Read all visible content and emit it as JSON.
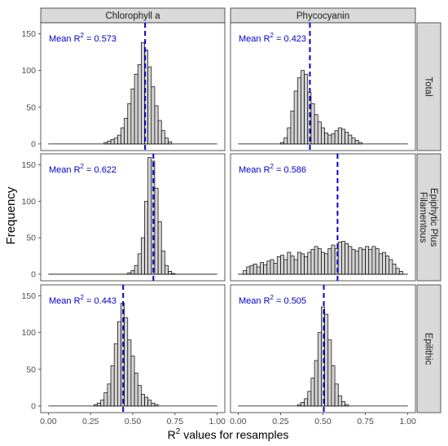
{
  "chart_data": {
    "type": "bar",
    "chart_kind": "faceted histogram",
    "xlabel": "R2 values for resamples",
    "xlabel_main": "R",
    "xlabel_sup": "2",
    "xlabel_rest": " values for resamples",
    "ylabel": "Frequency",
    "xlim": [
      0,
      1
    ],
    "x_ticks": [
      0.0,
      0.25,
      0.5,
      0.75,
      1.0
    ],
    "x_tick_labels": [
      "0.00",
      "0.25",
      "0.50",
      "0.75",
      "1.00"
    ],
    "ylim": [
      0,
      165
    ],
    "y_ticks": [
      0,
      50,
      100,
      150
    ],
    "y_tick_labels": [
      "0",
      "50",
      "100",
      "150"
    ],
    "columns": [
      "Chlorophyll a",
      "Phycocyanin"
    ],
    "rows": [
      "Total",
      "Epiphytic Plus Filamentous",
      "Epilithic"
    ],
    "row_label_lines": [
      [
        "Total"
      ],
      [
        "Epiphytic Plus",
        "Filamentous"
      ],
      [
        "Epilithic"
      ]
    ],
    "annotation_prefix": "Mean R",
    "annotation_sup": "2",
    "annotation_eq": " = ",
    "grid": false,
    "bar_fill": "#d3d3d3",
    "bar_stroke": "#000000",
    "mean_line_color": "#0000cc",
    "strip_fill": "#d9d9d9",
    "bin_width": 0.02,
    "panels": [
      {
        "row": "Total",
        "column": "Chlorophyll a",
        "mean_label": "0.573",
        "mean_line": 0.573,
        "bins": [
          {
            "x": 0.34,
            "y": 2
          },
          {
            "x": 0.36,
            "y": 4
          },
          {
            "x": 0.38,
            "y": 6
          },
          {
            "x": 0.4,
            "y": 8
          },
          {
            "x": 0.42,
            "y": 12
          },
          {
            "x": 0.44,
            "y": 22
          },
          {
            "x": 0.46,
            "y": 35
          },
          {
            "x": 0.48,
            "y": 55
          },
          {
            "x": 0.5,
            "y": 75
          },
          {
            "x": 0.52,
            "y": 95
          },
          {
            "x": 0.54,
            "y": 108
          },
          {
            "x": 0.56,
            "y": 138
          },
          {
            "x": 0.58,
            "y": 128
          },
          {
            "x": 0.6,
            "y": 105
          },
          {
            "x": 0.62,
            "y": 78
          },
          {
            "x": 0.64,
            "y": 52
          },
          {
            "x": 0.66,
            "y": 32
          },
          {
            "x": 0.68,
            "y": 18
          },
          {
            "x": 0.7,
            "y": 8
          },
          {
            "x": 0.72,
            "y": 3
          }
        ]
      },
      {
        "row": "Total",
        "column": "Phycocyanin",
        "mean_label": "0.423",
        "mean_line": 0.423,
        "bins": [
          {
            "x": 0.26,
            "y": 2
          },
          {
            "x": 0.28,
            "y": 8
          },
          {
            "x": 0.3,
            "y": 22
          },
          {
            "x": 0.32,
            "y": 45
          },
          {
            "x": 0.34,
            "y": 72
          },
          {
            "x": 0.36,
            "y": 90
          },
          {
            "x": 0.38,
            "y": 100
          },
          {
            "x": 0.4,
            "y": 95
          },
          {
            "x": 0.42,
            "y": 70
          },
          {
            "x": 0.44,
            "y": 55
          },
          {
            "x": 0.46,
            "y": 40
          },
          {
            "x": 0.48,
            "y": 30
          },
          {
            "x": 0.5,
            "y": 22
          },
          {
            "x": 0.52,
            "y": 15
          },
          {
            "x": 0.54,
            "y": 12
          },
          {
            "x": 0.56,
            "y": 14
          },
          {
            "x": 0.58,
            "y": 18
          },
          {
            "x": 0.6,
            "y": 22
          },
          {
            "x": 0.62,
            "y": 20
          },
          {
            "x": 0.64,
            "y": 16
          },
          {
            "x": 0.66,
            "y": 12
          },
          {
            "x": 0.68,
            "y": 8
          },
          {
            "x": 0.7,
            "y": 5
          },
          {
            "x": 0.72,
            "y": 2
          }
        ]
      },
      {
        "row": "Epiphytic Plus Filamentous",
        "column": "Chlorophyll a",
        "mean_label": "0.622",
        "mean_line": 0.622,
        "bins": [
          {
            "x": 0.48,
            "y": 2
          },
          {
            "x": 0.5,
            "y": 5
          },
          {
            "x": 0.52,
            "y": 12
          },
          {
            "x": 0.54,
            "y": 28
          },
          {
            "x": 0.56,
            "y": 50
          },
          {
            "x": 0.58,
            "y": 100
          },
          {
            "x": 0.6,
            "y": 160
          },
          {
            "x": 0.62,
            "y": 155
          },
          {
            "x": 0.64,
            "y": 118
          },
          {
            "x": 0.66,
            "y": 72
          },
          {
            "x": 0.68,
            "y": 32
          },
          {
            "x": 0.7,
            "y": 12
          },
          {
            "x": 0.72,
            "y": 4
          },
          {
            "x": 0.74,
            "y": 1
          }
        ]
      },
      {
        "row": "Epiphytic Plus Filamentous",
        "column": "Phycocyanin",
        "mean_label": "0.586",
        "mean_line": 0.586,
        "bins": [
          {
            "x": 0.04,
            "y": 5
          },
          {
            "x": 0.06,
            "y": 10
          },
          {
            "x": 0.08,
            "y": 12
          },
          {
            "x": 0.1,
            "y": 14
          },
          {
            "x": 0.12,
            "y": 10
          },
          {
            "x": 0.14,
            "y": 16
          },
          {
            "x": 0.16,
            "y": 13
          },
          {
            "x": 0.18,
            "y": 18
          },
          {
            "x": 0.2,
            "y": 20
          },
          {
            "x": 0.22,
            "y": 15
          },
          {
            "x": 0.24,
            "y": 24
          },
          {
            "x": 0.26,
            "y": 26
          },
          {
            "x": 0.28,
            "y": 20
          },
          {
            "x": 0.3,
            "y": 30
          },
          {
            "x": 0.32,
            "y": 25
          },
          {
            "x": 0.34,
            "y": 20
          },
          {
            "x": 0.36,
            "y": 30
          },
          {
            "x": 0.38,
            "y": 28
          },
          {
            "x": 0.4,
            "y": 24
          },
          {
            "x": 0.42,
            "y": 30
          },
          {
            "x": 0.44,
            "y": 34
          },
          {
            "x": 0.46,
            "y": 38
          },
          {
            "x": 0.48,
            "y": 35
          },
          {
            "x": 0.5,
            "y": 30
          },
          {
            "x": 0.52,
            "y": 28
          },
          {
            "x": 0.54,
            "y": 35
          },
          {
            "x": 0.56,
            "y": 40
          },
          {
            "x": 0.58,
            "y": 35
          },
          {
            "x": 0.6,
            "y": 44
          },
          {
            "x": 0.62,
            "y": 45
          },
          {
            "x": 0.64,
            "y": 42
          },
          {
            "x": 0.66,
            "y": 38
          },
          {
            "x": 0.68,
            "y": 34
          },
          {
            "x": 0.7,
            "y": 32
          },
          {
            "x": 0.72,
            "y": 36
          },
          {
            "x": 0.74,
            "y": 34
          },
          {
            "x": 0.76,
            "y": 38
          },
          {
            "x": 0.78,
            "y": 34
          },
          {
            "x": 0.8,
            "y": 38
          },
          {
            "x": 0.82,
            "y": 35
          },
          {
            "x": 0.84,
            "y": 28
          },
          {
            "x": 0.86,
            "y": 30
          },
          {
            "x": 0.88,
            "y": 25
          },
          {
            "x": 0.9,
            "y": 20
          },
          {
            "x": 0.92,
            "y": 14
          },
          {
            "x": 0.94,
            "y": 8
          },
          {
            "x": 0.96,
            "y": 4
          }
        ]
      },
      {
        "row": "Epilithic",
        "column": "Chlorophyll a",
        "mean_label": "0.443",
        "mean_line": 0.443,
        "bins": [
          {
            "x": 0.28,
            "y": 2
          },
          {
            "x": 0.3,
            "y": 4
          },
          {
            "x": 0.32,
            "y": 8
          },
          {
            "x": 0.34,
            "y": 18
          },
          {
            "x": 0.36,
            "y": 30
          },
          {
            "x": 0.38,
            "y": 55
          },
          {
            "x": 0.4,
            "y": 85
          },
          {
            "x": 0.42,
            "y": 115
          },
          {
            "x": 0.44,
            "y": 140
          },
          {
            "x": 0.46,
            "y": 120
          },
          {
            "x": 0.48,
            "y": 90
          },
          {
            "x": 0.5,
            "y": 68
          },
          {
            "x": 0.52,
            "y": 45
          },
          {
            "x": 0.54,
            "y": 28
          },
          {
            "x": 0.56,
            "y": 16
          },
          {
            "x": 0.58,
            "y": 12
          },
          {
            "x": 0.6,
            "y": 8
          },
          {
            "x": 0.62,
            "y": 4
          },
          {
            "x": 0.64,
            "y": 2
          }
        ]
      },
      {
        "row": "Epilithic",
        "column": "Phycocyanin",
        "mean_label": "0.505",
        "mean_line": 0.505,
        "bins": [
          {
            "x": 0.36,
            "y": 2
          },
          {
            "x": 0.38,
            "y": 5
          },
          {
            "x": 0.4,
            "y": 10
          },
          {
            "x": 0.42,
            "y": 20
          },
          {
            "x": 0.44,
            "y": 38
          },
          {
            "x": 0.46,
            "y": 62
          },
          {
            "x": 0.48,
            "y": 100
          },
          {
            "x": 0.5,
            "y": 135
          },
          {
            "x": 0.52,
            "y": 125
          },
          {
            "x": 0.54,
            "y": 90
          },
          {
            "x": 0.56,
            "y": 55
          },
          {
            "x": 0.58,
            "y": 30
          },
          {
            "x": 0.6,
            "y": 14
          },
          {
            "x": 0.62,
            "y": 6
          },
          {
            "x": 0.64,
            "y": 2
          }
        ]
      }
    ]
  }
}
